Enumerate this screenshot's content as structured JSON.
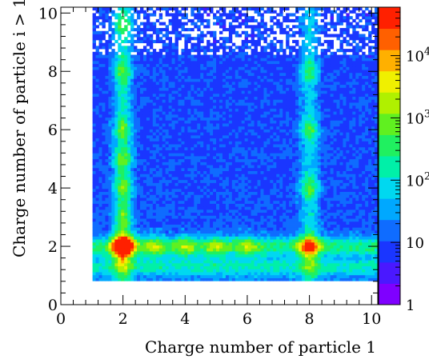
{
  "chart_data": {
    "type": "heatmap",
    "title": "",
    "xlabel": "Charge number of particle 1",
    "ylabel": "Charge number of particle i > 1",
    "xlim": [
      0,
      10.2
    ],
    "ylim": [
      0,
      10.2
    ],
    "x_ticks": [
      "0",
      "2",
      "4",
      "6",
      "8",
      "10"
    ],
    "y_ticks": [
      "0",
      "2",
      "4",
      "6",
      "8",
      "10"
    ],
    "color_scale": "log",
    "color_range": [
      1,
      60000
    ],
    "colorbar_ticks": [
      {
        "value": 1,
        "base": "1",
        "exp": ""
      },
      {
        "value": 10,
        "base": "10",
        "exp": ""
      },
      {
        "value": 100,
        "base": "10",
        "exp": "2"
      },
      {
        "value": 1000,
        "base": "10",
        "exp": "3"
      },
      {
        "value": 10000,
        "base": "10",
        "exp": "4"
      }
    ],
    "populated_region": {
      "x": [
        1,
        10.2
      ],
      "y": [
        0.8,
        10.2
      ]
    },
    "horizontal_band": {
      "y": 2,
      "peak_x": [
        2,
        3,
        4,
        5,
        6,
        8
      ]
    },
    "vertical_bands": [
      {
        "x": 2,
        "peak_y": [
          2,
          3,
          4,
          5,
          6,
          8,
          9.6
        ]
      },
      {
        "x": 8,
        "peak_y": [
          2,
          4,
          6,
          8
        ]
      }
    ],
    "brightest_cell": {
      "x": 2,
      "y": 2
    },
    "palette": [
      "#7f00ff",
      "#4a18ff",
      "#1a36ff",
      "#0f6cff",
      "#00a8ff",
      "#00d8f0",
      "#00f0a8",
      "#20f060",
      "#60f020",
      "#b0f000",
      "#f0f000",
      "#ffb000",
      "#ff6000",
      "#ff2000"
    ]
  }
}
